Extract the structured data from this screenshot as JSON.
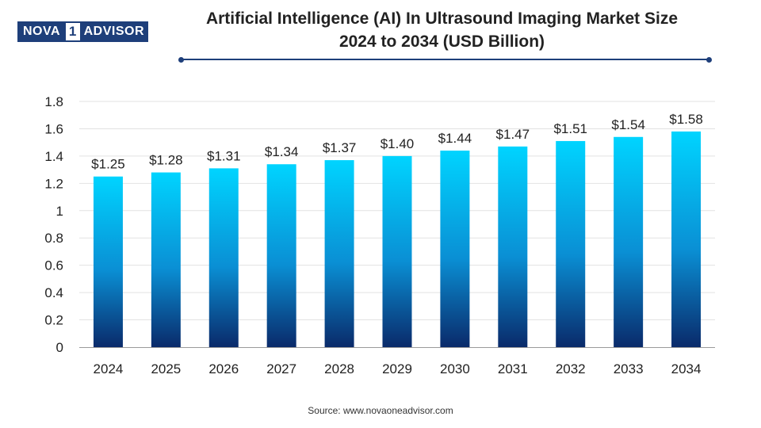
{
  "brand": {
    "left": "NOVA",
    "mid": "1",
    "right": "ADVISOR"
  },
  "title": {
    "line1": "Artificial Intelligence (AI) In Ultrasound Imaging Market Size",
    "line2": "2024 to 2034 (USD Billion)"
  },
  "source": "Source: www.novaoneadvisor.com",
  "colors": {
    "bar_top": "#00d4ff",
    "bar_mid": "#0a8fd4",
    "bar_bottom": "#0a2a6a",
    "grid": "#e2e2e2",
    "axis": "#9a9a9a",
    "text": "#222222",
    "brand": "#1e3f7a"
  },
  "chart_data": {
    "type": "bar",
    "title": "Artificial Intelligence (AI) In Ultrasound Imaging Market Size 2024 to 2034 (USD Billion)",
    "xlabel": "",
    "ylabel": "",
    "categories": [
      "2024",
      "2025",
      "2026",
      "2027",
      "2028",
      "2029",
      "2030",
      "2031",
      "2032",
      "2033",
      "2034"
    ],
    "values": [
      1.25,
      1.28,
      1.31,
      1.34,
      1.37,
      1.4,
      1.44,
      1.47,
      1.51,
      1.54,
      1.58
    ],
    "data_labels": [
      "$1.25",
      "$1.28",
      "$1.31",
      "$1.34",
      "$1.37",
      "$1.40",
      "$1.44",
      "$1.47",
      "$1.51",
      "$1.54",
      "$1.58"
    ],
    "ylim": [
      0,
      1.8
    ],
    "yticks": [
      0,
      0.2,
      0.4,
      0.6,
      0.8,
      1,
      1.2,
      1.4,
      1.6,
      1.8
    ],
    "ytick_labels": [
      "0",
      "0.2",
      "0.4",
      "0.6",
      "0.8",
      "1",
      "1.2",
      "1.4",
      "1.6",
      "1.8"
    ],
    "grid": true,
    "legend": "none"
  }
}
